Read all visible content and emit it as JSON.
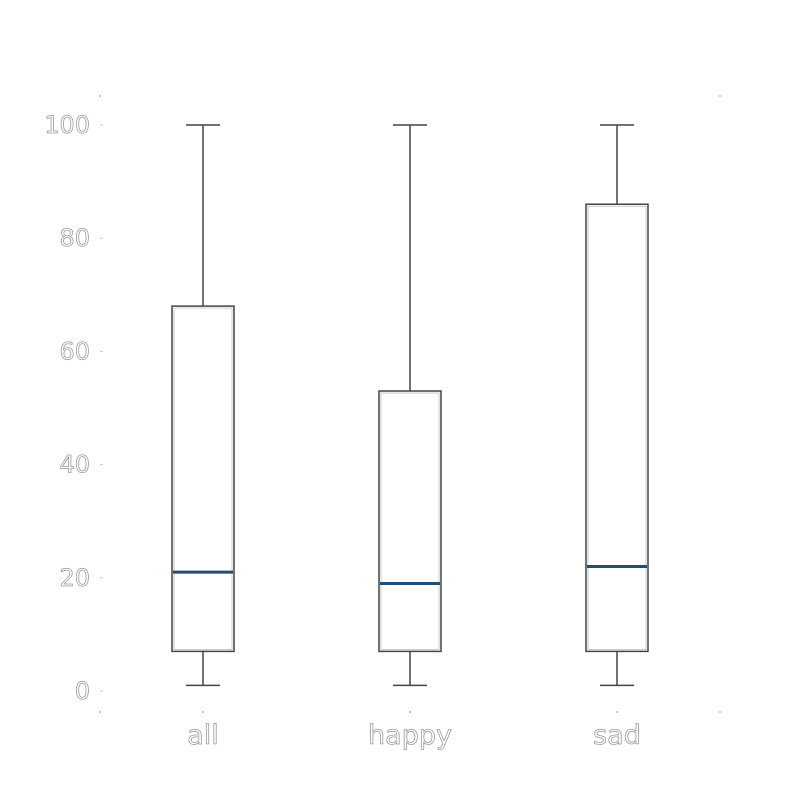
{
  "chart_data": {
    "type": "box",
    "title": "",
    "xlabel": "",
    "ylabel": "",
    "ylim": [
      -4,
      105
    ],
    "yticks": [
      0,
      20,
      40,
      60,
      80,
      100
    ],
    "grid": false,
    "categories": [
      "all",
      "happy",
      "sad"
    ],
    "boxes": [
      {
        "category": "all",
        "whisker_low": 1,
        "q1": 7,
        "median": 21,
        "q3": 68,
        "whisker_high": 100
      },
      {
        "category": "happy",
        "whisker_low": 1,
        "q1": 7,
        "median": 19,
        "q3": 53,
        "whisker_high": 100
      },
      {
        "category": "sad",
        "whisker_low": 1,
        "q1": 7,
        "median": 22,
        "q3": 86,
        "whisker_high": 100
      }
    ],
    "colors": {
      "box": "#444444",
      "median": "#1f4e79",
      "text": "#9a9a9a"
    }
  }
}
